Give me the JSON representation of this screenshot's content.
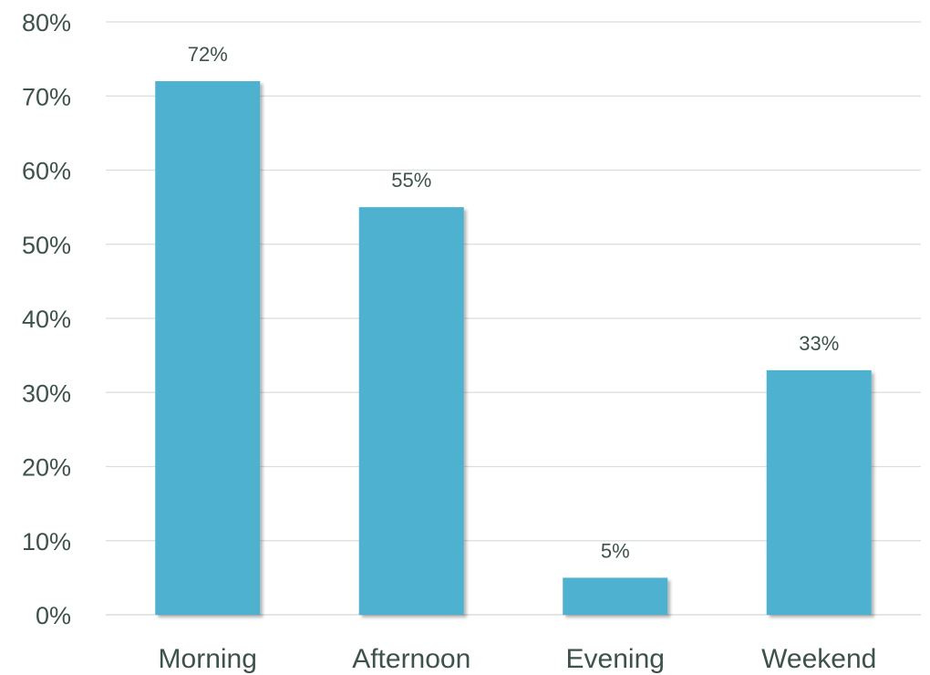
{
  "chart_data": {
    "type": "bar",
    "categories": [
      "Morning",
      "Afternoon",
      "Evening",
      "Weekend"
    ],
    "values": [
      72,
      55,
      5,
      33
    ],
    "data_labels": [
      "72%",
      "55%",
      "5%",
      "33%"
    ],
    "y_ticks": [
      "0%",
      "10%",
      "20%",
      "30%",
      "40%",
      "50%",
      "60%",
      "70%",
      "80%"
    ],
    "y_tick_values": [
      0,
      10,
      20,
      30,
      40,
      50,
      60,
      70,
      80
    ],
    "ylim": [
      0,
      80
    ],
    "grid": true,
    "legend": false,
    "bar_color": "#4db1cf"
  }
}
